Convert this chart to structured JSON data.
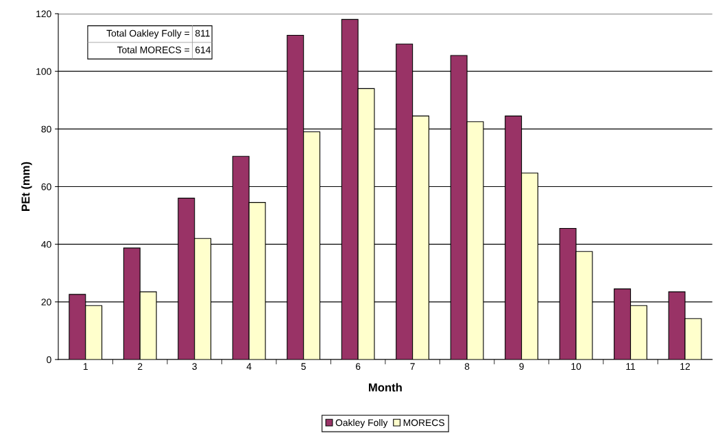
{
  "chart_data": {
    "type": "bar",
    "xlabel": "Month",
    "ylabel": "PEt (mm)",
    "categories": [
      "1",
      "2",
      "3",
      "4",
      "5",
      "6",
      "7",
      "8",
      "9",
      "10",
      "11",
      "12"
    ],
    "series": [
      {
        "name": "Oakley Folly",
        "color": "#993366",
        "values": [
          22.6,
          38.7,
          56,
          70.5,
          112.5,
          118,
          109.5,
          105.5,
          84.5,
          45.5,
          24.5,
          23.5
        ]
      },
      {
        "name": "MORECS",
        "color": "#ffffcc",
        "values": [
          18.7,
          23.5,
          42,
          54.5,
          79,
          94,
          84.5,
          82.5,
          64.7,
          37.5,
          18.7,
          14.2
        ]
      }
    ],
    "ylim": [
      0,
      120
    ],
    "yticks": [
      0,
      20,
      40,
      60,
      80,
      100,
      120
    ],
    "grid": "y",
    "legend": "bottom",
    "annotations": [
      "Total Oakley Folly =",
      "811",
      "Total MORECS =",
      "614"
    ]
  }
}
